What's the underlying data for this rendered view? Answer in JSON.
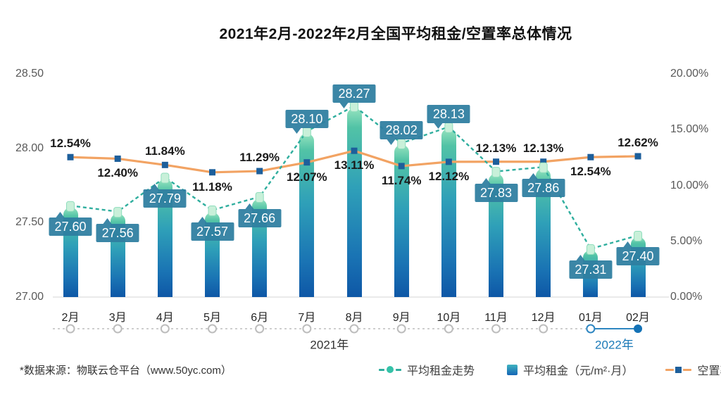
{
  "title": "2021年2月-2022年2月全国平均租金/空置率总体情况",
  "source_note": "*数据来源：物联云仓平台（www.50yc.com）",
  "legend": {
    "trend": "平均租金走势",
    "rent": "平均租金（元/m²·月）",
    "vacancy": "空置率"
  },
  "chart_data": {
    "type": "combo",
    "title": "2021年2月-2022年2月全国平均租金/空置率总体情况",
    "categories": [
      "2月",
      "3月",
      "4月",
      "5月",
      "6月",
      "7月",
      "8月",
      "9月",
      "10月",
      "11月",
      "12月",
      "01月",
      "02月"
    ],
    "series": [
      {
        "name": "平均租金（元/m²·月）",
        "type": "bar",
        "axis": "left",
        "values": [
          27.6,
          27.56,
          27.79,
          27.57,
          27.66,
          28.1,
          28.27,
          28.02,
          28.13,
          27.83,
          27.86,
          27.31,
          27.4
        ],
        "labels": [
          "27.60",
          "27.56",
          "27.79",
          "27.57",
          "27.66",
          "28.10",
          "28.27",
          "28.02",
          "28.13",
          "27.83",
          "27.86",
          "27.31",
          "27.40"
        ]
      },
      {
        "name": "平均租金走势",
        "type": "line",
        "style": "dashed",
        "axis": "left",
        "values": [
          27.6,
          27.56,
          27.79,
          27.57,
          27.66,
          28.1,
          28.27,
          28.02,
          28.13,
          27.83,
          27.86,
          27.31,
          27.4
        ]
      },
      {
        "name": "空置率",
        "type": "line",
        "axis": "right",
        "values": [
          12.54,
          12.4,
          11.84,
          11.18,
          11.29,
          12.07,
          13.11,
          11.74,
          12.12,
          12.13,
          12.13,
          12.54,
          12.62
        ],
        "labels": [
          "12.54%",
          "12.40%",
          "11.84%",
          "11.18%",
          "11.29%",
          "12.07%",
          "13.11%",
          "11.74%",
          "12.12%",
          "12.13%",
          "12.13%",
          "12.54%",
          "12.62%"
        ],
        "label_position": [
          "above",
          "below",
          "above",
          "below",
          "above",
          "below",
          "below",
          "below",
          "below",
          "above",
          "above",
          "below",
          "above"
        ]
      }
    ],
    "left_axis": {
      "min": 27.0,
      "max": 28.5,
      "ticks": [
        "28.50",
        "28.00",
        "27.50",
        "27.00"
      ]
    },
    "right_axis": {
      "min": 0,
      "max": 20,
      "ticks": [
        "20.00%",
        "15.00%",
        "10.00%",
        "5.00%",
        "0.00%"
      ]
    },
    "x_axis": {
      "year_groups": [
        {
          "label": "2021年",
          "from": 0,
          "to": 10
        },
        {
          "label": "2022年",
          "from": 11,
          "to": 12
        }
      ]
    },
    "colors": {
      "bar_top": "#93E2BE",
      "bar_mid": "#2FA0B8",
      "bar_bottom": "#0E57A6",
      "trend_line": "#2FAE9E",
      "trend_marker": "#C8F0D9",
      "vacancy_line": "#F2A363",
      "vacancy_marker": "#1D5F9B",
      "callout_bg": "#2F7EA0",
      "year_2021": "#333333",
      "year_2022": "#1B7AB8",
      "timeline_gray": "#BDBDBD",
      "timeline_blue": "#2E86C1"
    },
    "legend_position": "bottom",
    "grid": "off"
  }
}
